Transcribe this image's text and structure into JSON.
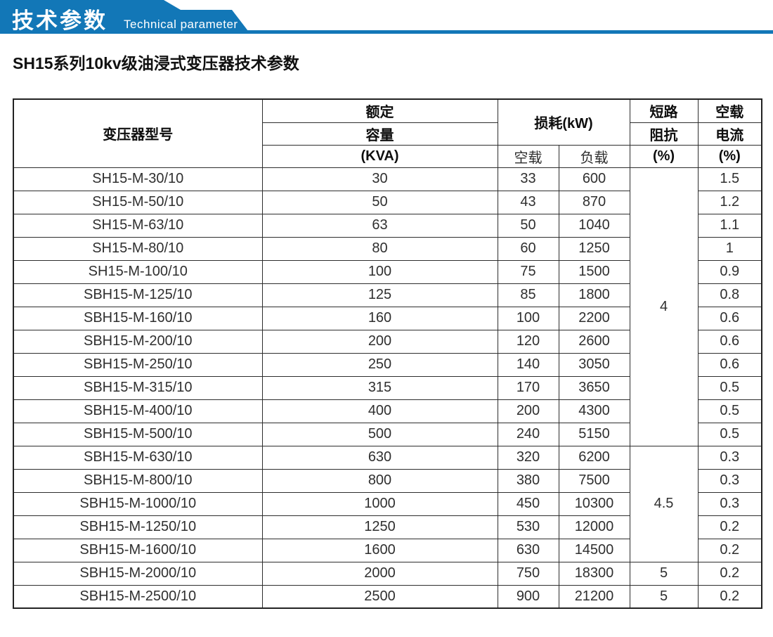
{
  "banner": {
    "title_zh": "技术参数",
    "title_en": "Technical parameter",
    "color": "#1277b7"
  },
  "page": {
    "heading": "SH15系列10kv级油浸式变压器技术参数"
  },
  "table": {
    "header": {
      "model": "变压器型号",
      "capacity_line1": "额定",
      "capacity_line2": "容量",
      "capacity_line3": "(KVA)",
      "loss": "损耗(kW)",
      "loss_no_load": "空载",
      "loss_load": "负载",
      "impedance_line1": "短路",
      "impedance_line2": "阻抗",
      "impedance_line3": "(%)",
      "current_line1": "空载",
      "current_line2": "电流",
      "current_line3": "(%)"
    },
    "rows": [
      {
        "model": "SH15-M-30/10",
        "capacity": "30",
        "no_load_loss": "33",
        "load_loss": "600",
        "no_load_current": "1.5"
      },
      {
        "model": "SH15-M-50/10",
        "capacity": "50",
        "no_load_loss": "43",
        "load_loss": "870",
        "no_load_current": "1.2"
      },
      {
        "model": "SH15-M-63/10",
        "capacity": "63",
        "no_load_loss": "50",
        "load_loss": "1040",
        "no_load_current": "1.1"
      },
      {
        "model": "SH15-M-80/10",
        "capacity": "80",
        "no_load_loss": "60",
        "load_loss": "1250",
        "no_load_current": "1"
      },
      {
        "model": "SH15-M-100/10",
        "capacity": "100",
        "no_load_loss": "75",
        "load_loss": "1500",
        "no_load_current": "0.9"
      },
      {
        "model": "SBH15-M-125/10",
        "capacity": "125",
        "no_load_loss": "85",
        "load_loss": "1800",
        "no_load_current": "0.8"
      },
      {
        "model": "SBH15-M-160/10",
        "capacity": "160",
        "no_load_loss": "100",
        "load_loss": "2200",
        "no_load_current": "0.6"
      },
      {
        "model": "SBH15-M-200/10",
        "capacity": "200",
        "no_load_loss": "120",
        "load_loss": "2600",
        "no_load_current": "0.6"
      },
      {
        "model": "SBH15-M-250/10",
        "capacity": "250",
        "no_load_loss": "140",
        "load_loss": "3050",
        "no_load_current": "0.6"
      },
      {
        "model": "SBH15-M-315/10",
        "capacity": "315",
        "no_load_loss": "170",
        "load_loss": "3650",
        "no_load_current": "0.5"
      },
      {
        "model": "SBH15-M-400/10",
        "capacity": "400",
        "no_load_loss": "200",
        "load_loss": "4300",
        "no_load_current": "0.5"
      },
      {
        "model": "SBH15-M-500/10",
        "capacity": "500",
        "no_load_loss": "240",
        "load_loss": "5150",
        "no_load_current": "0.5"
      },
      {
        "model": "SBH15-M-630/10",
        "capacity": "630",
        "no_load_loss": "320",
        "load_loss": "6200",
        "no_load_current": "0.3"
      },
      {
        "model": "SBH15-M-800/10",
        "capacity": "800",
        "no_load_loss": "380",
        "load_loss": "7500",
        "no_load_current": "0.3"
      },
      {
        "model": "SBH15-M-1000/10",
        "capacity": "1000",
        "no_load_loss": "450",
        "load_loss": "10300",
        "no_load_current": "0.3"
      },
      {
        "model": "SBH15-M-1250/10",
        "capacity": "1250",
        "no_load_loss": "530",
        "load_loss": "12000",
        "no_load_current": "0.2"
      },
      {
        "model": "SBH15-M-1600/10",
        "capacity": "1600",
        "no_load_loss": "630",
        "load_loss": "14500",
        "no_load_current": "0.2"
      },
      {
        "model": "SBH15-M-2000/10",
        "capacity": "2000",
        "no_load_loss": "750",
        "load_loss": "18300",
        "no_load_current": "0.2"
      },
      {
        "model": "SBH15-M-2500/10",
        "capacity": "2500",
        "no_load_loss": "900",
        "load_loss": "21200",
        "no_load_current": "0.2"
      }
    ],
    "impedance_groups": [
      {
        "value": "4",
        "rowspan": 12
      },
      {
        "value": "4.5",
        "rowspan": 5
      },
      {
        "value": "5",
        "rowspan": 1
      },
      {
        "value": "5",
        "rowspan": 1
      }
    ]
  }
}
